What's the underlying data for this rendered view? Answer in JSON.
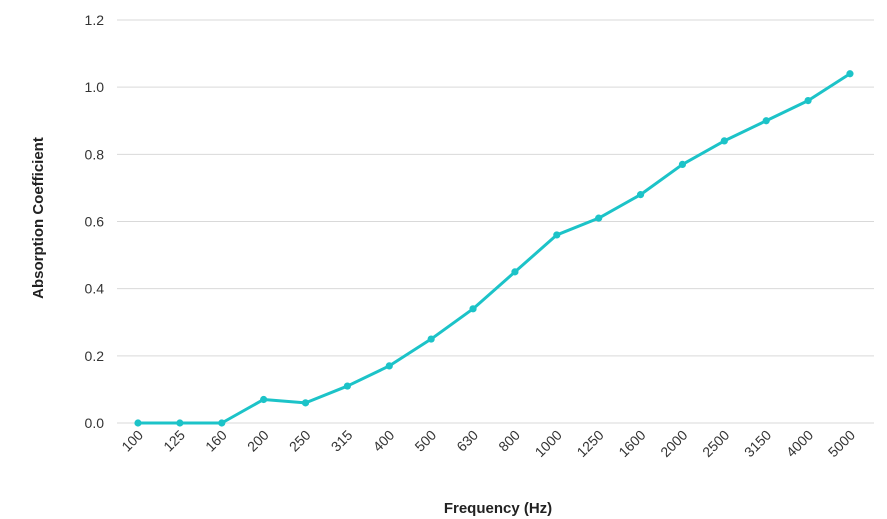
{
  "chart_data": {
    "type": "line",
    "title": "",
    "xlabel": "Frequency (Hz)",
    "ylabel": "Absorption Coefficient",
    "categories": [
      "100",
      "125",
      "160",
      "200",
      "250",
      "315",
      "400",
      "500",
      "630",
      "800",
      "1000",
      "1250",
      "1600",
      "2000",
      "2500",
      "3150",
      "4000",
      "5000"
    ],
    "series": [
      {
        "values": [
          0.0,
          0.0,
          0.0,
          0.07,
          0.06,
          0.11,
          0.17,
          0.25,
          0.34,
          0.45,
          0.56,
          0.61,
          0.68,
          0.77,
          0.84,
          0.9,
          0.96,
          1.04
        ]
      }
    ],
    "ylim": [
      0,
      1.2
    ],
    "yticks": [
      "0.0",
      "0.2",
      "0.4",
      "0.6",
      "0.8",
      "1.0",
      "1.2"
    ],
    "grid": true,
    "legend": "none",
    "line_color": "#1cc3c8"
  }
}
